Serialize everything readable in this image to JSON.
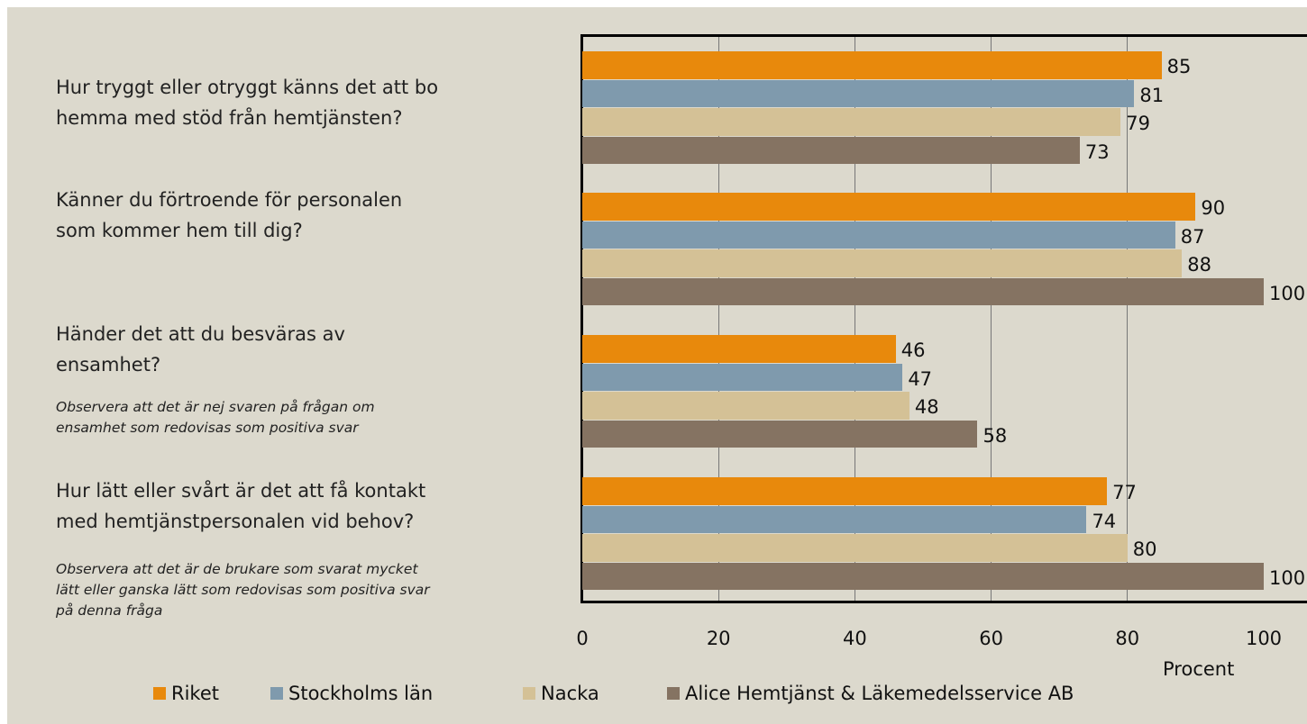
{
  "chart_data": {
    "type": "bar",
    "orientation": "horizontal",
    "categories": [
      "Hur tryggt eller otryggt känns det att bo\nhemma med stöd från hemtjänsten?",
      "Känner du förtroende för personalen\nsom kommer hem till dig?",
      "Händer det att du besväras av\nensamhet?",
      "Hur lätt eller svårt är det att få kontakt\nmed hemtjänstpersonalen vid behov?"
    ],
    "annotations": [
      "Observera att det är nej svaren på frågan om\nensamhet som redovisas som positiva svar",
      "Observera att det är de brukare som svarat mycket\nlätt eller ganska lätt som redovisas som positiva svar\npå denna fråga"
    ],
    "series": [
      {
        "name": "Riket",
        "color": "#e8890c",
        "values": [
          85,
          90,
          46,
          77
        ]
      },
      {
        "name": "Stockholms län",
        "color": "#7f9aad",
        "values": [
          81,
          87,
          47,
          74
        ]
      },
      {
        "name": "Nacka",
        "color": "#d4c196",
        "values": [
          79,
          88,
          48,
          80
        ]
      },
      {
        "name": "Alice Hemtjänst & Läkemedelsservice AB",
        "color": "#857362",
        "values": [
          73,
          100,
          58,
          100
        ]
      }
    ],
    "x_label": "Procent",
    "xlim": [
      0,
      100
    ],
    "xticks": [
      0,
      20,
      40,
      60,
      80,
      100
    ],
    "grid": true,
    "legend": "bottom"
  }
}
